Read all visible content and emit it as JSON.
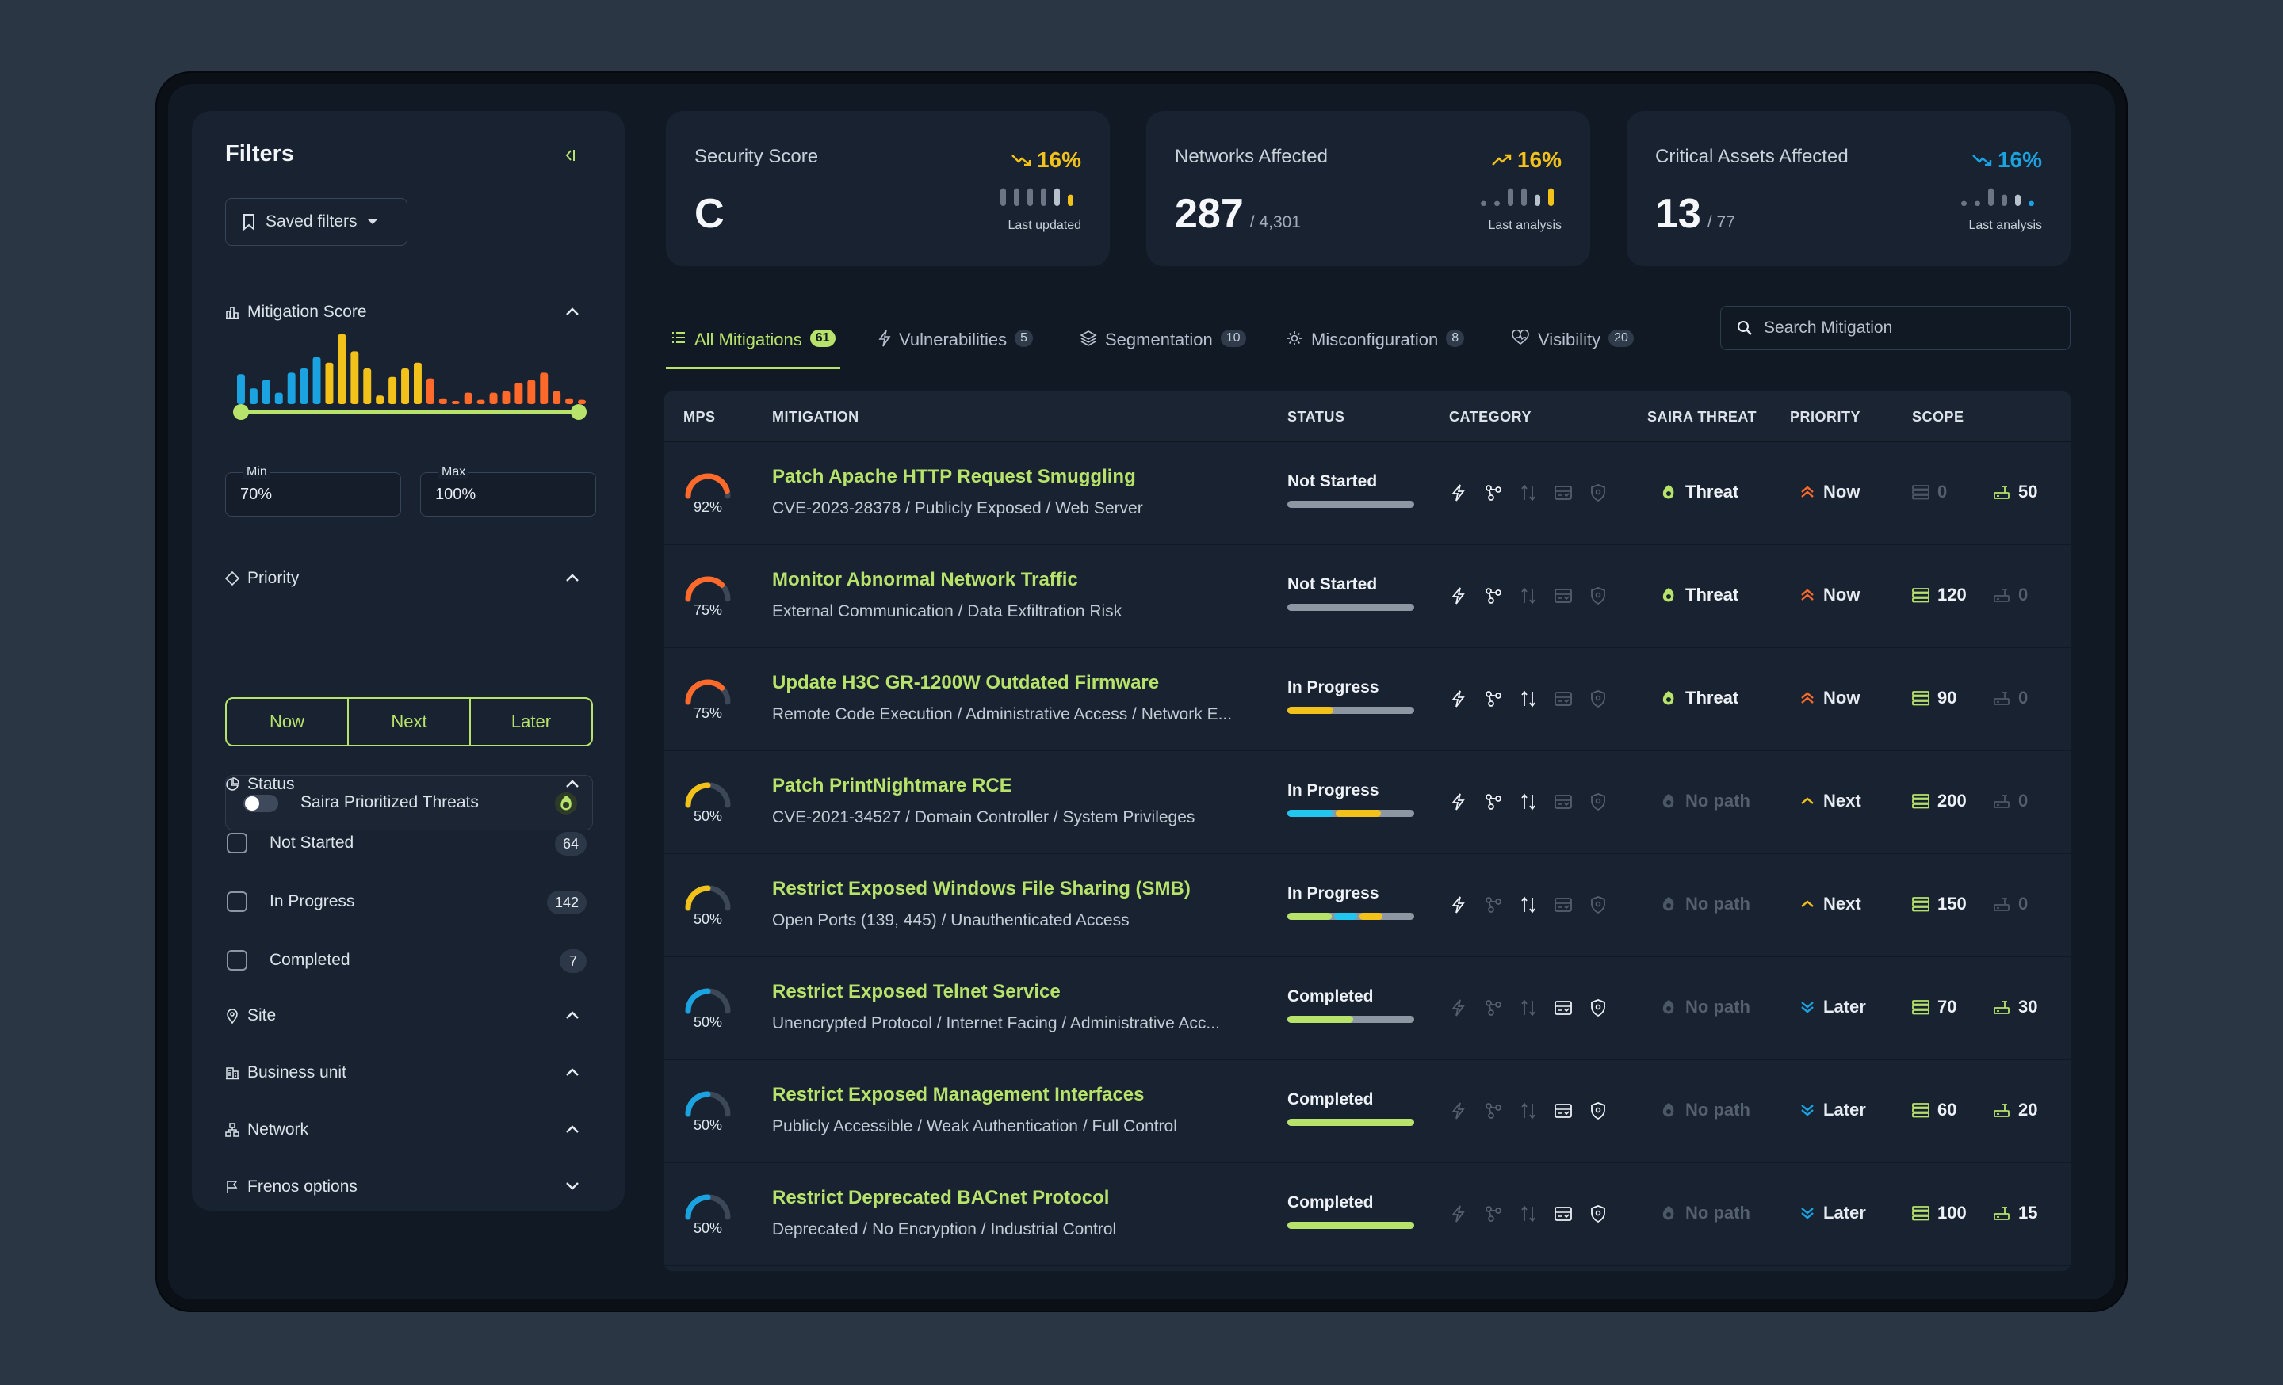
{
  "sidebar": {
    "title": "Filters",
    "saved_filters": "Saved filters",
    "mitigation_score": {
      "label": "Mitigation Score",
      "histogram": [
        {
          "v": 0.42,
          "c": "#1aa3e0"
        },
        {
          "v": 0.22,
          "c": "#1aa3e0"
        },
        {
          "v": 0.34,
          "c": "#1aa3e0"
        },
        {
          "v": 0.16,
          "c": "#1aa3e0"
        },
        {
          "v": 0.44,
          "c": "#1aa3e0"
        },
        {
          "v": 0.5,
          "c": "#1aa3e0"
        },
        {
          "v": 0.66,
          "c": "#1aa3e0"
        },
        {
          "v": 0.58,
          "c": "#f2c21b"
        },
        {
          "v": 0.98,
          "c": "#f2c21b"
        },
        {
          "v": 0.74,
          "c": "#f2c21b"
        },
        {
          "v": 0.5,
          "c": "#f2c21b"
        },
        {
          "v": 0.12,
          "c": "#f2c21b"
        },
        {
          "v": 0.38,
          "c": "#f2c21b"
        },
        {
          "v": 0.5,
          "c": "#f2c21b"
        },
        {
          "v": 0.58,
          "c": "#f2c21b"
        },
        {
          "v": 0.36,
          "c": "#ff6a2b"
        },
        {
          "v": 0.08,
          "c": "#ff6a2b"
        },
        {
          "v": 0.04,
          "c": "#ff6a2b"
        },
        {
          "v": 0.16,
          "c": "#ff6a2b"
        },
        {
          "v": 0.06,
          "c": "#ff6a2b"
        },
        {
          "v": 0.16,
          "c": "#ff6a2b"
        },
        {
          "v": 0.18,
          "c": "#ff6a2b"
        },
        {
          "v": 0.3,
          "c": "#ff6a2b"
        },
        {
          "v": 0.34,
          "c": "#ff6a2b"
        },
        {
          "v": 0.44,
          "c": "#ff6a2b"
        },
        {
          "v": 0.18,
          "c": "#ff6a2b"
        },
        {
          "v": 0.08,
          "c": "#ff6a2b"
        },
        {
          "v": 0.06,
          "c": "#ff6a2b"
        }
      ],
      "min_label": "Min",
      "min_value": "70%",
      "max_label": "Max",
      "max_value": "100%"
    },
    "priority": {
      "label": "Priority",
      "options": [
        "Now",
        "Next",
        "Later"
      ]
    },
    "saira_toggle": "Saira Prioritized Threats",
    "status": {
      "label": "Status",
      "items": [
        {
          "label": "Not Started",
          "count": "64"
        },
        {
          "label": "In Progress",
          "count": "142"
        },
        {
          "label": "Completed",
          "count": "7"
        }
      ]
    },
    "site": "Site",
    "business_unit": "Business unit",
    "network": "Network",
    "frenos_options": "Frenos options"
  },
  "cards": [
    {
      "title": "Security Score",
      "value": "C",
      "sub": "",
      "pct": "16%",
      "pct_color": "#f2c21b",
      "trend": "down",
      "caption": "Last updated",
      "spark": [
        {
          "h": 0.7,
          "c": "#6b7584"
        },
        {
          "h": 0.7,
          "c": "#6b7584"
        },
        {
          "h": 0.7,
          "c": "#6b7584"
        },
        {
          "h": 0.7,
          "c": "#6b7584"
        },
        {
          "h": 0.7,
          "c": "#b9c1cc"
        },
        {
          "h": 0.45,
          "c": "#f2c21b"
        }
      ]
    },
    {
      "title": "Networks Affected",
      "value": "287",
      "sub": "/ 4,301",
      "pct": "16%",
      "pct_color": "#f2c21b",
      "trend": "up",
      "caption": "Last analysis",
      "spark": [
        {
          "h": 0.2,
          "c": "#6b7584"
        },
        {
          "h": 0.2,
          "c": "#6b7584"
        },
        {
          "h": 0.7,
          "c": "#6b7584"
        },
        {
          "h": 0.7,
          "c": "#6b7584"
        },
        {
          "h": 0.45,
          "c": "#b9c1cc"
        },
        {
          "h": 0.7,
          "c": "#f2c21b"
        }
      ]
    },
    {
      "title": "Critical Assets Affected",
      "value": "13",
      "sub": "/ 77",
      "pct": "16%",
      "pct_color": "#1aa3e0",
      "trend": "down",
      "caption": "Last analysis",
      "spark": [
        {
          "h": 0.2,
          "c": "#6b7584"
        },
        {
          "h": 0.2,
          "c": "#6b7584"
        },
        {
          "h": 0.7,
          "c": "#6b7584"
        },
        {
          "h": 0.45,
          "c": "#6b7584"
        },
        {
          "h": 0.45,
          "c": "#b9c1cc"
        },
        {
          "h": 0.2,
          "c": "#1aa3e0"
        }
      ]
    }
  ],
  "tabs": [
    {
      "label": "All Mitigations",
      "count": "61",
      "icon": "list-icon"
    },
    {
      "label": "Vulnerabilities",
      "count": "5",
      "icon": "bolt-icon"
    },
    {
      "label": "Segmentation",
      "count": "10",
      "icon": "layers-icon"
    },
    {
      "label": "Misconfiguration",
      "count": "8",
      "icon": "cog-icon"
    },
    {
      "label": "Visibility",
      "count": "20",
      "icon": "eye-heart-icon"
    }
  ],
  "search": {
    "placeholder": "Search Mitigation"
  },
  "table": {
    "headers": [
      "MPS",
      "MITIGATION",
      "STATUS",
      "CATEGORY",
      "SAIRA THREAT",
      "PRIORITY",
      "SCOPE"
    ],
    "rows": [
      {
        "mps": "92%",
        "mps_val": 0.92,
        "mps_color": "#ff6a2b",
        "title": "Patch Apache HTTP Request Smuggling",
        "desc": "CVE-2023-28378 / Publicly Exposed / Web Server",
        "status": "Not Started",
        "bar": [],
        "cats": [
          1,
          1,
          0,
          0,
          0
        ],
        "threat": "Threat",
        "threat_on": true,
        "priority": "Now",
        "pri_kind": "now",
        "scope1": "0",
        "scope1_on": false,
        "scope2": "50",
        "scope2_on": true
      },
      {
        "mps": "75%",
        "mps_val": 0.75,
        "mps_color": "#ff6a2b",
        "title": "Monitor Abnormal Network Traffic",
        "desc": "External Communication / Data Exfiltration Risk",
        "status": "Not Started",
        "bar": [],
        "cats": [
          1,
          1,
          0,
          0,
          0
        ],
        "threat": "Threat",
        "threat_on": true,
        "priority": "Now",
        "pri_kind": "now",
        "scope1": "120",
        "scope1_on": true,
        "scope2": "0",
        "scope2_on": false
      },
      {
        "mps": "75%",
        "mps_val": 0.75,
        "mps_color": "#ff6a2b",
        "title": "Update H3C GR-1200W Outdated Firmware",
        "desc": "Remote Code Execution / Administrative Access / Network E...",
        "status": "In Progress",
        "bar": [
          {
            "w": 0.36,
            "c": "#f2c21b"
          }
        ],
        "cats": [
          1,
          1,
          1,
          0,
          0
        ],
        "threat": "Threat",
        "threat_on": true,
        "priority": "Now",
        "pri_kind": "now",
        "scope1": "90",
        "scope1_on": true,
        "scope2": "0",
        "scope2_on": false
      },
      {
        "mps": "50%",
        "mps_val": 0.5,
        "mps_color": "#f2c21b",
        "title": "Patch PrintNightmare RCE",
        "desc": "CVE-2021-34527 / Domain Controller / System Privileges",
        "status": "In Progress",
        "bar": [
          {
            "w": 0.36,
            "c": "#22c5ee"
          },
          {
            "w": 0.36,
            "c": "#f2c21b"
          }
        ],
        "cats": [
          1,
          1,
          1,
          0,
          0
        ],
        "threat": "No path",
        "threat_on": false,
        "priority": "Next",
        "pri_kind": "next",
        "scope1": "200",
        "scope1_on": true,
        "scope2": "0",
        "scope2_on": false
      },
      {
        "mps": "50%",
        "mps_val": 0.5,
        "mps_color": "#f2c21b",
        "title": "Restrict Exposed Windows File Sharing (SMB)",
        "desc": "Open Ports (139, 445) / Unauthenticated Access",
        "status": "In Progress",
        "bar": [
          {
            "w": 0.35,
            "c": "#b7e36b"
          },
          {
            "w": 0.18,
            "c": "#22c5ee"
          },
          {
            "w": 0.18,
            "c": "#f2c21b"
          }
        ],
        "cats": [
          1,
          0,
          1,
          0,
          0
        ],
        "threat": "No path",
        "threat_on": false,
        "priority": "Next",
        "pri_kind": "next",
        "scope1": "150",
        "scope1_on": true,
        "scope2": "0",
        "scope2_on": false
      },
      {
        "mps": "50%",
        "mps_val": 0.5,
        "mps_color": "#1aa3e0",
        "title": "Restrict Exposed Telnet Service",
        "desc": "Unencrypted Protocol / Internet Facing / Administrative Acc...",
        "status": "Completed",
        "bar": [
          {
            "w": 0.52,
            "c": "#b7e36b"
          }
        ],
        "cats": [
          0,
          0,
          0,
          1,
          1
        ],
        "threat": "No path",
        "threat_on": false,
        "priority": "Later",
        "pri_kind": "later",
        "scope1": "70",
        "scope1_on": true,
        "scope2": "30",
        "scope2_on": true
      },
      {
        "mps": "50%",
        "mps_val": 0.5,
        "mps_color": "#1aa3e0",
        "title": "Restrict Exposed Management Interfaces",
        "desc": "Publicly Accessible / Weak Authentication / Full Control",
        "status": "Completed",
        "bar": [
          {
            "w": 1,
            "c": "#b7e36b"
          }
        ],
        "cats": [
          0,
          0,
          0,
          1,
          1
        ],
        "threat": "No path",
        "threat_on": false,
        "priority": "Later",
        "pri_kind": "later",
        "scope1": "60",
        "scope1_on": true,
        "scope2": "20",
        "scope2_on": true
      },
      {
        "mps": "50%",
        "mps_val": 0.5,
        "mps_color": "#1aa3e0",
        "title": "Restrict Deprecated BACnet Protocol",
        "desc": "Deprecated / No Encryption / Industrial Control",
        "status": "Completed",
        "bar": [
          {
            "w": 1,
            "c": "#b7e36b"
          }
        ],
        "cats": [
          0,
          0,
          0,
          1,
          1
        ],
        "threat": "No path",
        "threat_on": false,
        "priority": "Later",
        "pri_kind": "later",
        "scope1": "100",
        "scope1_on": true,
        "scope2": "15",
        "scope2_on": true
      }
    ]
  },
  "colors": {
    "accent": "#b7e36b",
    "orange": "#ff6a2b",
    "yellow": "#f2c21b",
    "blue": "#1aa3e0"
  }
}
